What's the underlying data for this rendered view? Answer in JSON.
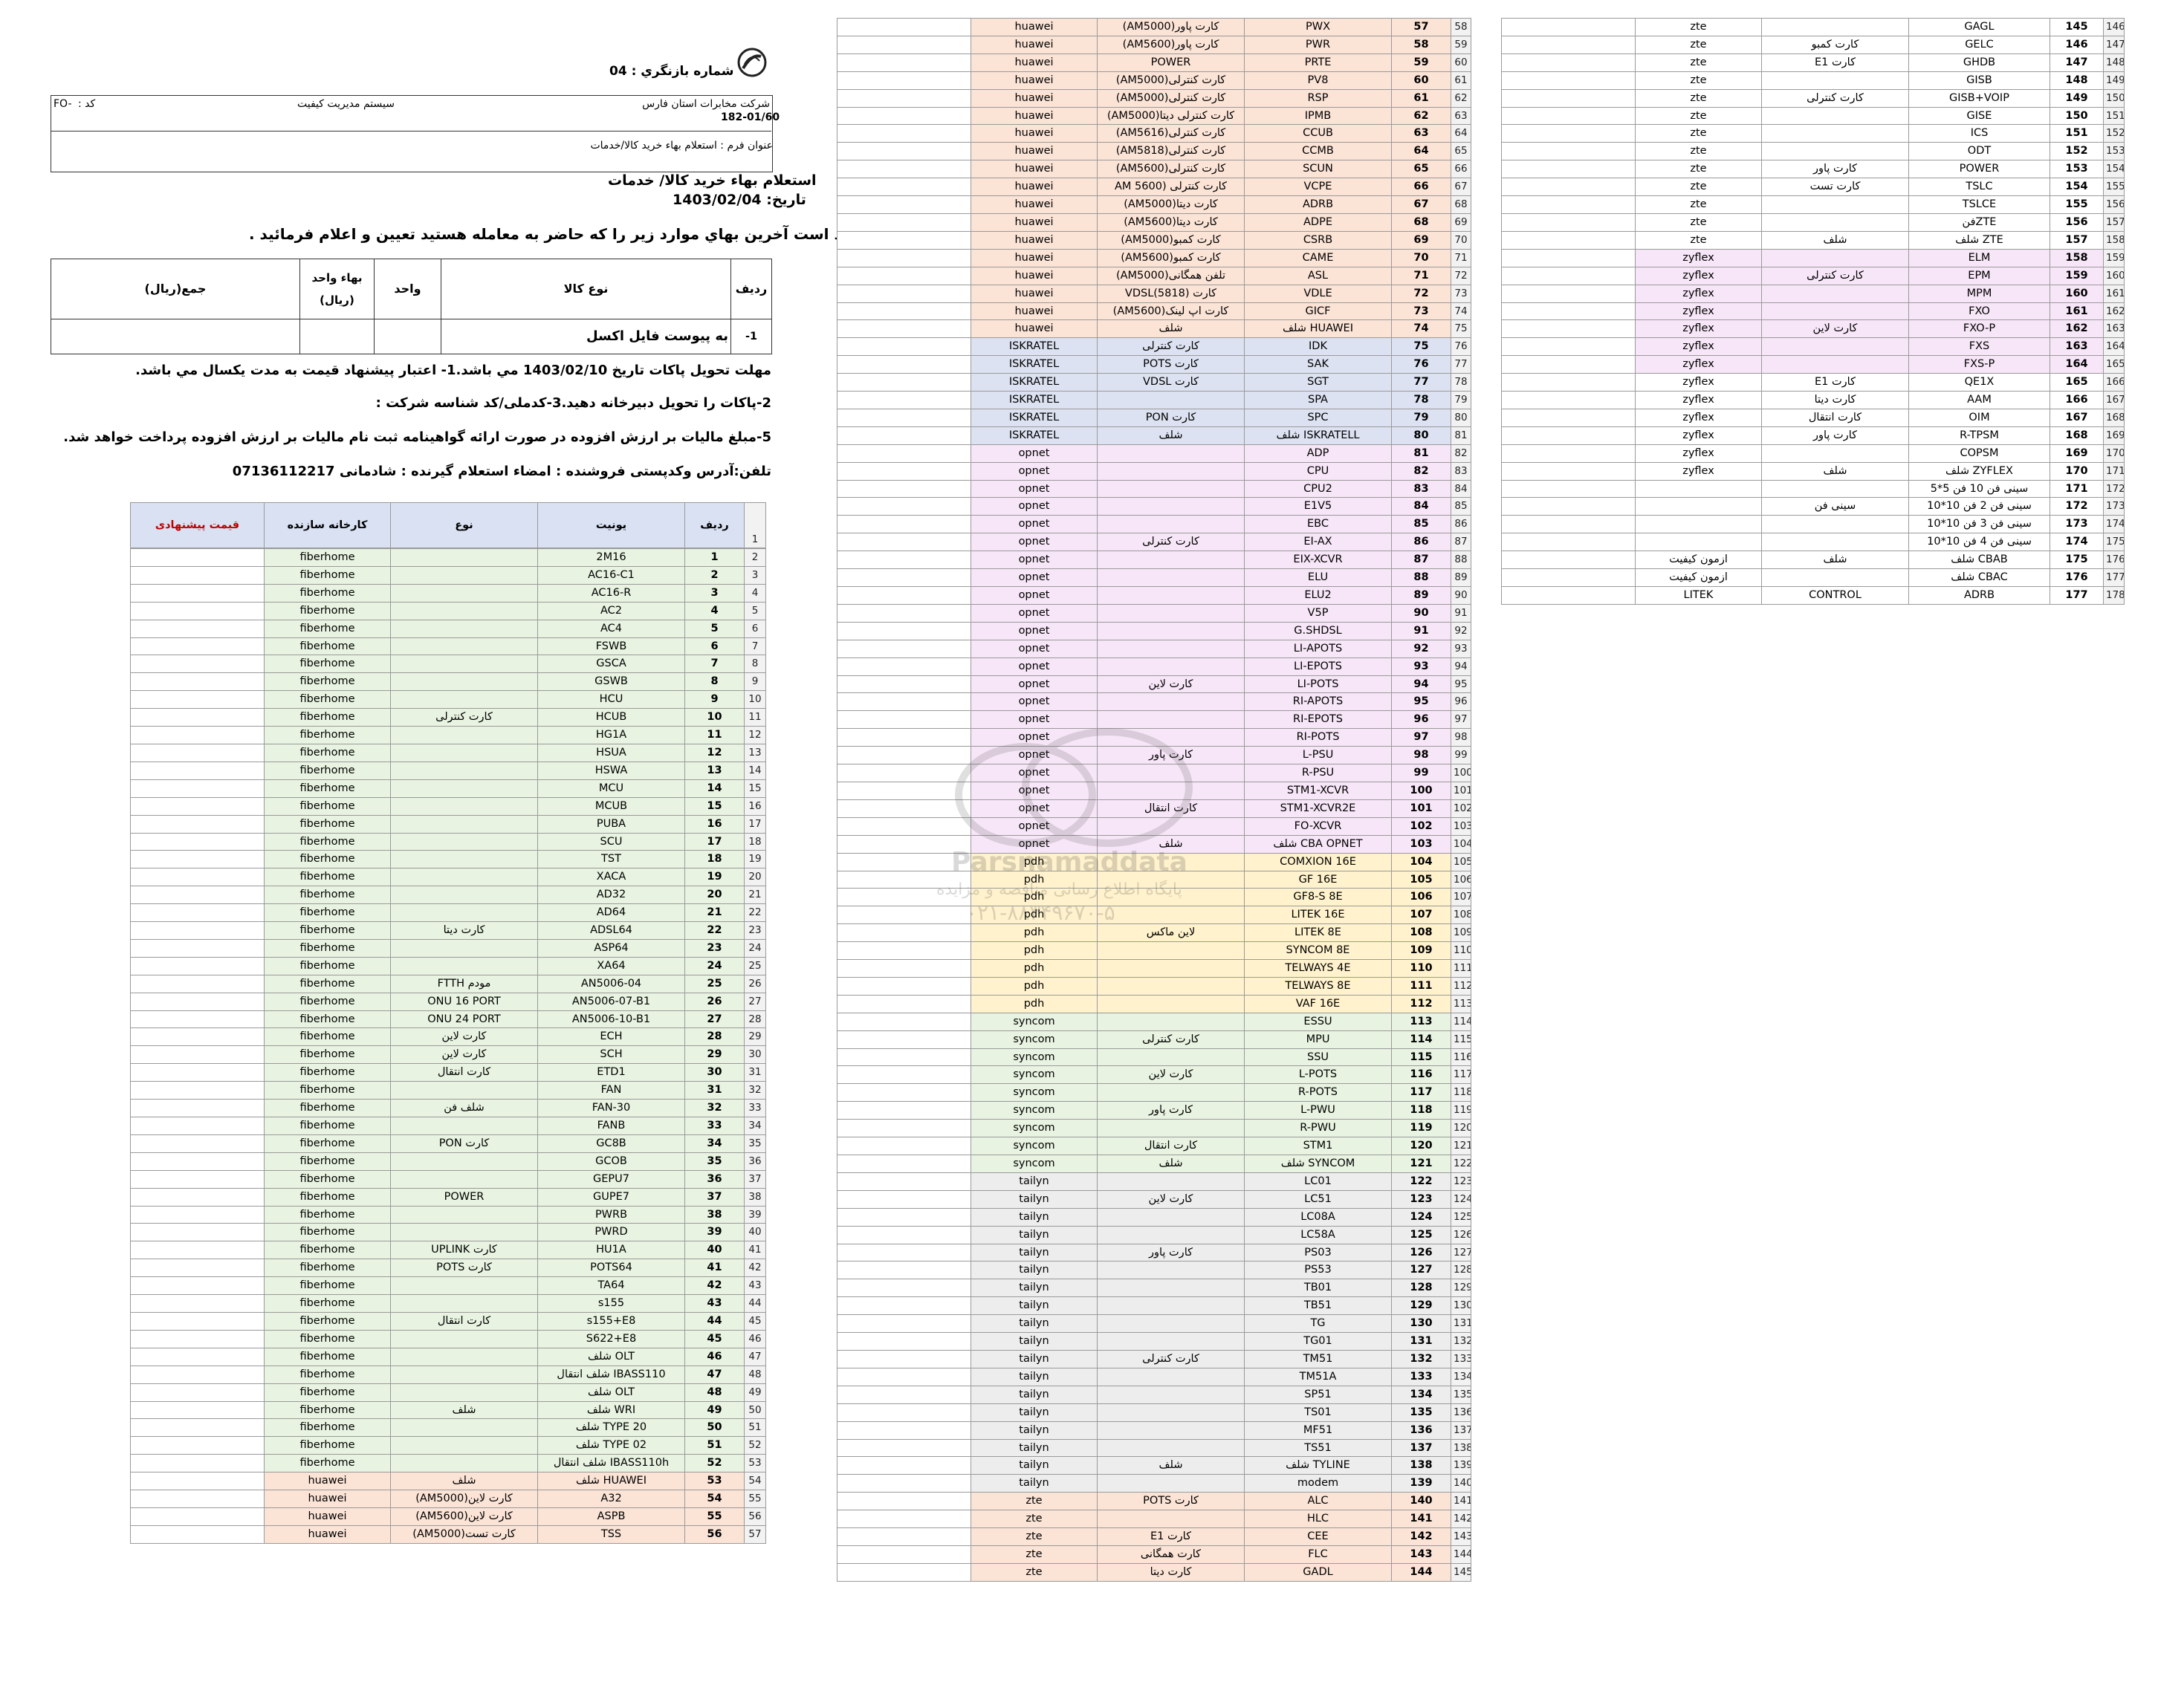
{
  "header": {
    "inquiry_number": "شماره بازنگري : 04",
    "company": "شرکت مخابرات استان فارس",
    "system": "سیستم مدیریت کیفیت",
    "code_label": "کد :",
    "code_value": "FO-",
    "form_number": "182-01/60",
    "form_title": "عنوان فرم : استعلام بهاء خرید کالا/خدمات",
    "main_title": "استعلام  بهاء خريد كالا/ خدمات",
    "date": "تاريخ: 1403/02/04",
    "request": "خواهشمند است آخرين بهاي موارد زير را كه حاضر به معامله هستيد تعيين و اعلام فرمائيد ."
  },
  "inquiry_table": {
    "headers": [
      "رديف",
      "نوع كالا",
      "واحد",
      "بهاء واحد",
      "(ريال)",
      "جمع(ريال)"
    ],
    "row": {
      "num": "-1",
      "item": "به پیوست فایل اکسل",
      "unit": "",
      "price": "",
      "total": ""
    }
  },
  "notes": [
    "مهلت تحويل پاكات تاريخ   1403/02/10  مي باشد.1- اعتبار پيشنهاد قيمت به مدت يكسال مي باشد.",
    "2-پاكات را تحويل دبيرخانه دهيد.3-كدملی/كد شناسه شركت :",
    "5-مبلغ ماليات بر ارزش افزوده در صورت ارائه گواهينامه ثبت نام ماليات بر ارزش افزوده پرداخت خواهد شد.",
    "تلفن:آدرس وكدپستی فروشنده :  امضاء استعلام گيرنده : شادمانی 07136112217"
  ],
  "list_headers": {
    "row": "ردیف",
    "unit": "یونیت",
    "type": "نوع",
    "maker": "کارخانه سازنده",
    "price": "قیمت پیشنهادی"
  },
  "col1_rows": [
    [
      "2",
      "1",
      "2M16",
      "",
      "fiberhome",
      "g"
    ],
    [
      "3",
      "2",
      "AC16-C1",
      "",
      "fiberhome",
      "g"
    ],
    [
      "4",
      "3",
      "AC16-R",
      "",
      "fiberhome",
      "g"
    ],
    [
      "5",
      "4",
      "AC2",
      "",
      "fiberhome",
      "g"
    ],
    [
      "6",
      "5",
      "AC4",
      "",
      "fiberhome",
      "g"
    ],
    [
      "7",
      "6",
      "FSWB",
      "",
      "fiberhome",
      "g"
    ],
    [
      "8",
      "7",
      "GSCA",
      "",
      "fiberhome",
      "g"
    ],
    [
      "9",
      "8",
      "GSWB",
      "",
      "fiberhome",
      "g"
    ],
    [
      "10",
      "9",
      "HCU",
      "",
      "fiberhome",
      "g"
    ],
    [
      "11",
      "10",
      "HCUB",
      "کارت کنترلی",
      "fiberhome",
      "g"
    ],
    [
      "12",
      "11",
      "HG1A",
      "",
      "fiberhome",
      "g"
    ],
    [
      "13",
      "12",
      "HSUA",
      "",
      "fiberhome",
      "g"
    ],
    [
      "14",
      "13",
      "HSWA",
      "",
      "fiberhome",
      "g"
    ],
    [
      "15",
      "14",
      "MCU",
      "",
      "fiberhome",
      "g"
    ],
    [
      "16",
      "15",
      "MCUB",
      "",
      "fiberhome",
      "g"
    ],
    [
      "17",
      "16",
      "PUBA",
      "",
      "fiberhome",
      "g"
    ],
    [
      "18",
      "17",
      "SCU",
      "",
      "fiberhome",
      "g"
    ],
    [
      "19",
      "18",
      "TST",
      "",
      "fiberhome",
      "g"
    ],
    [
      "20",
      "19",
      "XACA",
      "",
      "fiberhome",
      "g"
    ],
    [
      "21",
      "20",
      "AD32",
      "",
      "fiberhome",
      "g"
    ],
    [
      "22",
      "21",
      "AD64",
      "",
      "fiberhome",
      "g"
    ],
    [
      "23",
      "22",
      "ADSL64",
      "کارت دیتا",
      "fiberhome",
      "g"
    ],
    [
      "24",
      "23",
      "ASP64",
      "",
      "fiberhome",
      "g"
    ],
    [
      "25",
      "24",
      "XA64",
      "",
      "fiberhome",
      "g"
    ],
    [
      "26",
      "25",
      "AN5006-04",
      "مودم FTTH",
      "fiberhome",
      "g"
    ],
    [
      "27",
      "26",
      "AN5006-07-B1",
      "ONU 16 PORT",
      "fiberhome",
      "g"
    ],
    [
      "28",
      "27",
      "AN5006-10-B1",
      "ONU 24 PORT",
      "fiberhome",
      "g"
    ],
    [
      "29",
      "28",
      "ECH",
      "کارت لاین",
      "fiberhome",
      "g"
    ],
    [
      "30",
      "29",
      "SCH",
      "کارت لاین",
      "fiberhome",
      "g"
    ],
    [
      "31",
      "30",
      "ETD1",
      "کارت انتقال",
      "fiberhome",
      "g"
    ],
    [
      "32",
      "31",
      "FAN",
      "",
      "fiberhome",
      "g"
    ],
    [
      "33",
      "32",
      "FAN-30",
      "شلف فن",
      "fiberhome",
      "g"
    ],
    [
      "34",
      "33",
      "FANB",
      "",
      "fiberhome",
      "g"
    ],
    [
      "35",
      "34",
      "GC8B",
      "کارت PON",
      "fiberhome",
      "g"
    ],
    [
      "36",
      "35",
      "GCOB",
      "",
      "fiberhome",
      "g"
    ],
    [
      "37",
      "36",
      "GEPU7",
      "",
      "fiberhome",
      "g"
    ],
    [
      "38",
      "37",
      "GUPE7",
      "POWER",
      "fiberhome",
      "g"
    ],
    [
      "39",
      "38",
      "PWRB",
      "",
      "fiberhome",
      "g"
    ],
    [
      "40",
      "39",
      "PWRD",
      "",
      "fiberhome",
      "g"
    ],
    [
      "41",
      "40",
      "HU1A",
      "کارت UPLINK",
      "fiberhome",
      "g"
    ],
    [
      "42",
      "41",
      "POTS64",
      "کارت POTS",
      "fiberhome",
      "g"
    ],
    [
      "43",
      "42",
      "TA64",
      "",
      "fiberhome",
      "g"
    ],
    [
      "44",
      "43",
      "s155",
      "",
      "fiberhome",
      "g"
    ],
    [
      "45",
      "44",
      "s155+E8",
      "کارت انتقال",
      "fiberhome",
      "g"
    ],
    [
      "46",
      "45",
      "S622+E8",
      "",
      "fiberhome",
      "g"
    ],
    [
      "47",
      "46",
      "شلف OLT",
      "",
      "fiberhome",
      "g"
    ],
    [
      "48",
      "47",
      "شلف انتقال IBASS110",
      "",
      "fiberhome",
      "g"
    ],
    [
      "49",
      "48",
      "شلف OLT",
      "",
      "fiberhome",
      "g"
    ],
    [
      "50",
      "49",
      "شلف WRI",
      "شلف",
      "fiberhome",
      "g"
    ],
    [
      "51",
      "50",
      "شلف TYPE 20",
      "",
      "fiberhome",
      "g"
    ],
    [
      "52",
      "51",
      "شلف TYPE 02",
      "",
      "fiberhome",
      "g"
    ],
    [
      "53",
      "52",
      "شلف انتقال IBASS110h",
      "",
      "fiberhome",
      "g"
    ],
    [
      "54",
      "53",
      "شلف HUAWEI",
      "شلف",
      "huawei",
      "o"
    ],
    [
      "55",
      "54",
      "A32",
      "کارت لاین(AM5000)",
      "huawei",
      "o"
    ],
    [
      "56",
      "55",
      "ASPB",
      "کارت لاین(AM5600)",
      "huawei",
      "o"
    ],
    [
      "57",
      "56",
      "TSS",
      "کارت تست(AM5000)",
      "huawei",
      "o"
    ]
  ],
  "col2_rows": [
    [
      "58",
      "57",
      "PWX",
      "کارت پاور(AM5000)",
      "huawei",
      "o"
    ],
    [
      "59",
      "58",
      "PWR",
      "کارت پاور(AM5600)",
      "huawei",
      "o"
    ],
    [
      "60",
      "59",
      "PRTE",
      "POWER",
      "huawei",
      "o"
    ],
    [
      "61",
      "60",
      "PV8",
      "کارت کنترلی(AM5000)",
      "huawei",
      "o"
    ],
    [
      "62",
      "61",
      "RSP",
      "کارت کنترلی(AM5000)",
      "huawei",
      "o"
    ],
    [
      "63",
      "62",
      "IPMB",
      "کارت کنترلی دیتا(AM5000)",
      "huawei",
      "o"
    ],
    [
      "64",
      "63",
      "CCUB",
      "کارت کنترلی(AM5616)",
      "huawei",
      "o"
    ],
    [
      "65",
      "64",
      "CCMB",
      "کارت کنترلی(AM5818)",
      "huawei",
      "o"
    ],
    [
      "66",
      "65",
      "SCUN",
      "کارت کنترلی(AM5600)",
      "huawei",
      "o"
    ],
    [
      "67",
      "66",
      "VCPE",
      "کارت کنترلی (AM 5600",
      "huawei",
      "o"
    ],
    [
      "68",
      "67",
      "ADRB",
      "کارت دیتا(AM5000)",
      "huawei",
      "o"
    ],
    [
      "69",
      "68",
      "ADPE",
      "کارت دیتا(AM5600)",
      "huawei",
      "o"
    ],
    [
      "70",
      "69",
      "CSRB",
      "کارت کمبو(AM5000)",
      "huawei",
      "o"
    ],
    [
      "71",
      "70",
      "CAME",
      "کارت کمبو(AM5600)",
      "huawei",
      "o"
    ],
    [
      "72",
      "71",
      "ASL",
      "تلفن همگانی(AM5000)",
      "huawei",
      "o"
    ],
    [
      "73",
      "72",
      "VDLE",
      "کارت VDSL(5818)",
      "huawei",
      "o"
    ],
    [
      "74",
      "73",
      "GICF",
      "کارت اپ لینک(AM5600)",
      "huawei",
      "o"
    ],
    [
      "75",
      "74",
      "شلف HUAWEI",
      "شلف",
      "huawei",
      "o"
    ],
    [
      "76",
      "75",
      "IDK",
      "کارت کنترلی",
      "ISKRATEL",
      "b"
    ],
    [
      "77",
      "76",
      "SAK",
      "کارت POTS",
      "ISKRATEL",
      "b"
    ],
    [
      "78",
      "77",
      "SGT",
      "کارت VDSL",
      "ISKRATEL",
      "b"
    ],
    [
      "79",
      "78",
      "SPA",
      "",
      "ISKRATEL",
      "b"
    ],
    [
      "80",
      "79",
      "SPC",
      "کارت PON",
      "ISKRATEL",
      "b"
    ],
    [
      "81",
      "80",
      "شلف ISKRATELL",
      "شلف",
      "ISKRATEL",
      "b"
    ],
    [
      "82",
      "81",
      "ADP",
      "",
      "opnet",
      "p"
    ],
    [
      "83",
      "82",
      "CPU",
      "",
      "opnet",
      "p"
    ],
    [
      "84",
      "83",
      "CPU2",
      "",
      "opnet",
      "p"
    ],
    [
      "85",
      "84",
      "E1V5",
      "",
      "opnet",
      "p"
    ],
    [
      "86",
      "85",
      "EBC",
      "",
      "opnet",
      "p"
    ],
    [
      "87",
      "86",
      "EI-AX",
      "کارت کنترلی",
      "opnet",
      "p"
    ],
    [
      "88",
      "87",
      "EIX-XCVR",
      "",
      "opnet",
      "p"
    ],
    [
      "89",
      "88",
      "ELU",
      "",
      "opnet",
      "p"
    ],
    [
      "90",
      "89",
      "ELU2",
      "",
      "opnet",
      "p"
    ],
    [
      "91",
      "90",
      "V5P",
      "",
      "opnet",
      "p"
    ],
    [
      "92",
      "91",
      "G.SHDSL",
      "",
      "opnet",
      "p"
    ],
    [
      "93",
      "92",
      "LI-APOTS",
      "",
      "opnet",
      "p"
    ],
    [
      "94",
      "93",
      "LI-EPOTS",
      "",
      "opnet",
      "p"
    ],
    [
      "95",
      "94",
      "LI-POTS",
      "کارت لاین",
      "opnet",
      "p"
    ],
    [
      "96",
      "95",
      "RI-APOTS",
      "",
      "opnet",
      "p"
    ],
    [
      "97",
      "96",
      "RI-EPOTS",
      "",
      "opnet",
      "p"
    ],
    [
      "98",
      "97",
      "RI-POTS",
      "",
      "opnet",
      "p"
    ],
    [
      "99",
      "98",
      "L-PSU",
      "کارت پاور",
      "opnet",
      "p"
    ],
    [
      "100",
      "99",
      "R-PSU",
      "",
      "opnet",
      "p"
    ],
    [
      "101",
      "100",
      "STM1-XCVR",
      "",
      "opnet",
      "p"
    ],
    [
      "102",
      "101",
      "STM1-XCVR2E",
      "کارت انتقال",
      "opnet",
      "p"
    ],
    [
      "103",
      "102",
      "FO-XCVR",
      "",
      "opnet",
      "p"
    ],
    [
      "104",
      "103",
      "شلف CBA OPNET",
      "شلف",
      "opnet",
      "p"
    ],
    [
      "105",
      "104",
      "COMXION 16E",
      "",
      "pdh",
      "y"
    ],
    [
      "106",
      "105",
      "GF 16E",
      "",
      "pdh",
      "y"
    ],
    [
      "107",
      "106",
      "GF8-S 8E",
      "",
      "pdh",
      "y"
    ],
    [
      "108",
      "107",
      "LITEK 16E",
      "",
      "pdh",
      "y"
    ],
    [
      "109",
      "108",
      "LITEK 8E",
      "لاین ماکس",
      "pdh",
      "y"
    ],
    [
      "110",
      "109",
      "SYNCOM 8E",
      "",
      "pdh",
      "y"
    ],
    [
      "111",
      "110",
      "TELWAYS 4E",
      "",
      "pdh",
      "y"
    ],
    [
      "112",
      "111",
      "TELWAYS 8E",
      "",
      "pdh",
      "y"
    ],
    [
      "113",
      "112",
      "VAF 16E",
      "",
      "pdh",
      "y"
    ],
    [
      "114",
      "113",
      "ESSU",
      "",
      "syncom",
      "g"
    ],
    [
      "115",
      "114",
      "MPU",
      "کارت کنترلی",
      "syncom",
      "g"
    ],
    [
      "116",
      "115",
      "SSU",
      "",
      "syncom",
      "g"
    ],
    [
      "117",
      "116",
      "L-POTS",
      "کارت لاین",
      "syncom",
      "g"
    ],
    [
      "118",
      "117",
      "R-POTS",
      "",
      "syncom",
      "g"
    ],
    [
      "119",
      "118",
      "L-PWU",
      "کارت پاور",
      "syncom",
      "g"
    ],
    [
      "120",
      "119",
      "R-PWU",
      "",
      "syncom",
      "g"
    ],
    [
      "121",
      "120",
      "STM1",
      "کارت انتقال",
      "syncom",
      "g"
    ],
    [
      "122",
      "121",
      "شلف SYNCOM",
      "شلف",
      "syncom",
      "g"
    ],
    [
      "123",
      "122",
      "LC01",
      "",
      "tailyn",
      "gy"
    ],
    [
      "124",
      "123",
      "LC51",
      "کارت لاین",
      "tailyn",
      "gy"
    ],
    [
      "125",
      "124",
      "LC08A",
      "",
      "tailyn",
      "gy"
    ],
    [
      "126",
      "125",
      "LC58A",
      "",
      "tailyn",
      "gy"
    ],
    [
      "127",
      "126",
      "PS03",
      "کارت پاور",
      "tailyn",
      "gy"
    ],
    [
      "128",
      "127",
      "PS53",
      "",
      "tailyn",
      "gy"
    ],
    [
      "129",
      "128",
      "TB01",
      "",
      "tailyn",
      "gy"
    ],
    [
      "130",
      "129",
      "TB51",
      "",
      "tailyn",
      "gy"
    ],
    [
      "131",
      "130",
      "TG",
      "",
      "tailyn",
      "gy"
    ],
    [
      "132",
      "131",
      "TG01",
      "",
      "tailyn",
      "gy"
    ],
    [
      "133",
      "132",
      "TM51",
      "کارت کنترلی",
      "tailyn",
      "gy"
    ],
    [
      "134",
      "133",
      "TM51A",
      "",
      "tailyn",
      "gy"
    ],
    [
      "135",
      "134",
      "SP51",
      "",
      "tailyn",
      "gy"
    ],
    [
      "136",
      "135",
      "TS01",
      "",
      "tailyn",
      "gy"
    ],
    [
      "137",
      "136",
      "MF51",
      "",
      "tailyn",
      "gy"
    ],
    [
      "138",
      "137",
      "TS51",
      "",
      "tailyn",
      "gy"
    ],
    [
      "139",
      "138",
      "شلف TYLINE",
      "شلف",
      "tailyn",
      "gy"
    ],
    [
      "140",
      "139",
      "modem",
      "",
      "tailyn",
      "gy"
    ],
    [
      "141",
      "140",
      "ALC",
      "کارت POTS",
      "zte",
      "o"
    ],
    [
      "142",
      "141",
      "HLC",
      "",
      "zte",
      "o"
    ],
    [
      "143",
      "142",
      "CEE",
      "کارت E1",
      "zte",
      "o"
    ],
    [
      "144",
      "143",
      "FLC",
      "کارت همگانی",
      "zte",
      "o"
    ],
    [
      "145",
      "144",
      "GADL",
      "کارت دیتا",
      "zte",
      "o"
    ]
  ],
  "col3_rows": [
    [
      "146",
      "145",
      "GAGL",
      "",
      "zte",
      ""
    ],
    [
      "147",
      "146",
      "GELC",
      "کارت کمبو",
      "zte",
      ""
    ],
    [
      "148",
      "147",
      "GHDB",
      "کارت E1",
      "zte",
      ""
    ],
    [
      "149",
      "148",
      "GISB",
      "",
      "zte",
      ""
    ],
    [
      "150",
      "149",
      "GISB+VOIP",
      "کارت کنترلی",
      "zte",
      ""
    ],
    [
      "151",
      "150",
      "GISE",
      "",
      "zte",
      ""
    ],
    [
      "152",
      "151",
      "ICS",
      "",
      "zte",
      ""
    ],
    [
      "153",
      "152",
      "ODT",
      "",
      "zte",
      ""
    ],
    [
      "154",
      "153",
      "POWER",
      "کارت پاور",
      "zte",
      ""
    ],
    [
      "155",
      "154",
      "TSLC",
      "کارت تست",
      "zte",
      ""
    ],
    [
      "156",
      "155",
      "TSLCE",
      "",
      "zte",
      ""
    ],
    [
      "157",
      "156",
      "فنZTE",
      "",
      "zte",
      ""
    ],
    [
      "158",
      "157",
      "شلف ZTE",
      "شلف",
      "zte",
      ""
    ],
    [
      "159",
      "158",
      "ELM",
      "",
      "zyflex",
      "p"
    ],
    [
      "160",
      "159",
      "EPM",
      "کارت کنترلی",
      "zyflex",
      "p"
    ],
    [
      "161",
      "160",
      "MPM",
      "",
      "zyflex",
      "p"
    ],
    [
      "162",
      "161",
      "FXO",
      "",
      "zyflex",
      "p"
    ],
    [
      "163",
      "162",
      "FXO-P",
      "کارت لاین",
      "zyflex",
      "p"
    ],
    [
      "164",
      "163",
      "FXS",
      "",
      "zyflex",
      "p"
    ],
    [
      "165",
      "164",
      "FXS-P",
      "",
      "zyflex",
      "p"
    ],
    [
      "166",
      "165",
      "QE1X",
      "کارت E1",
      "zyflex",
      ""
    ],
    [
      "167",
      "166",
      "AAM",
      "کارت دیتا",
      "zyflex",
      ""
    ],
    [
      "168",
      "167",
      "OIM",
      "کارت انتقال",
      "zyflex",
      ""
    ],
    [
      "169",
      "168",
      "R-TPSM",
      "کارت پاور",
      "zyflex",
      ""
    ],
    [
      "170",
      "169",
      "COPSM",
      "",
      "zyflex",
      ""
    ],
    [
      "171",
      "170",
      "شلف ZYFLEX",
      "شلف",
      "zyflex",
      ""
    ],
    [
      "172",
      "171",
      "سینی فن 10 فن 5*5",
      "",
      "",
      ""
    ],
    [
      "173",
      "172",
      "سینی فن 2 فن 10*10",
      "سینی فن",
      "",
      ""
    ],
    [
      "174",
      "173",
      "سینی فن 3 فن 10*10",
      "",
      "",
      ""
    ],
    [
      "175",
      "174",
      "سینی فن 4 فن 10*10",
      "",
      "",
      ""
    ],
    [
      "176",
      "175",
      "شلف CBAB",
      "شلف",
      "ازمون کیفیت",
      ""
    ],
    [
      "177",
      "176",
      "شلف CBAC",
      "",
      "ازمون کیفیت",
      ""
    ],
    [
      "178",
      "177",
      "ADRB",
      "CONTROL",
      "LITEK",
      ""
    ]
  ],
  "watermark": {
    "line1": "Parsnamaddata",
    "line2": "پایگاه اطلاع رسانی مناقصه و مزایده",
    "phone": "۰۲۱-۸۸۳۴۹۶۷۰-۵"
  }
}
